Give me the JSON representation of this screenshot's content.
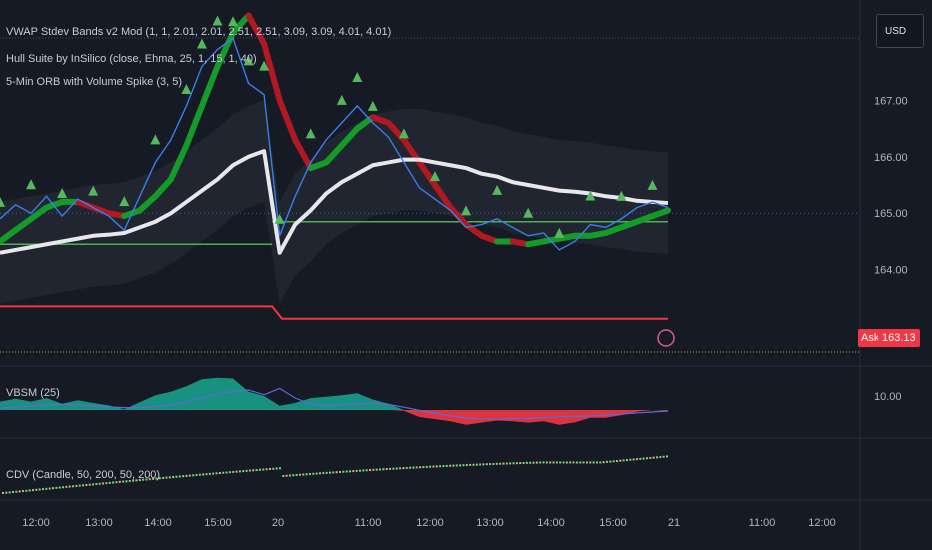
{
  "header": {
    "currency": "USD"
  },
  "indicators": {
    "vwap": "VWAP Stdev Bands v2 Mod (1, 1, 2.01, 2.01, 2.51, 2.51, 3.09, 3.09, 4.01, 4.01)",
    "hull": "Hull Suite by InSilico (close, Ehma, 25, 1, 15, 1, 40)",
    "orb": "5-Min ORB with Volume Spike (3, 5)",
    "vbsm": "VBSM (25)",
    "cdv": "CDV (Candle, 50, 200, 50, 200)"
  },
  "price_axis": {
    "ticks": [
      "167.00",
      "166.00",
      "165.00",
      "164.00"
    ],
    "vbsm_tick": "10.00"
  },
  "ask": {
    "label": "Ask",
    "price": "163.13"
  },
  "time_axis": {
    "ticks": [
      "12:00",
      "13:00",
      "14:00",
      "15:00",
      "20",
      "11:00",
      "12:00",
      "13:00",
      "14:00",
      "15:00",
      "21",
      "11:00",
      "12:00"
    ]
  },
  "colors": {
    "background": "#161a25",
    "price_line": "#3b7de9",
    "vwap": "#e8e8ec",
    "hull_up": "#149b2a",
    "hull_down": "#b01822",
    "orb_high": "#4caf50",
    "orb_low": "#f23645",
    "triangle": "#55b85c",
    "vbsm_pos": "#1a9e8c",
    "vbsm_neg": "#f23645",
    "cdv_up": "#7ed67a",
    "cdv_down": "#f4a38c"
  },
  "chart_data": {
    "type": "line",
    "x": [
      "11:30",
      "11:45",
      "12:00",
      "12:15",
      "12:30",
      "12:45",
      "13:00",
      "13:15",
      "13:30",
      "13:45",
      "14:00",
      "14:15",
      "14:30",
      "14:45",
      "15:00",
      "15:15",
      "15:30",
      "15:45",
      "20 09:30",
      "09:45",
      "10:00",
      "10:15",
      "10:30",
      "10:45",
      "11:00",
      "11:15",
      "11:30",
      "11:45",
      "12:00",
      "12:15",
      "12:30",
      "12:45",
      "13:00",
      "13:15",
      "13:30",
      "13:45",
      "14:00",
      "14:15",
      "14:30",
      "14:45",
      "15:00",
      "15:15",
      "15:30",
      "15:45"
    ],
    "series": [
      {
        "values": [
          164.9,
          165.15,
          165.0,
          165.3,
          164.95,
          165.25,
          165.1,
          164.95,
          164.7,
          165.3,
          165.9,
          166.3,
          166.9,
          167.6,
          167.9,
          168.1,
          167.3,
          167.1,
          164.6,
          165.3,
          165.9,
          166.3,
          166.6,
          166.9,
          166.6,
          166.35,
          165.9,
          165.45,
          165.25,
          165.05,
          164.75,
          164.8,
          164.9,
          164.75,
          164.6,
          164.65,
          164.35,
          164.5,
          164.8,
          164.75,
          164.9,
          165.1,
          165.2,
          165.1
        ]
      },
      {
        "values": [
          164.3,
          164.35,
          164.4,
          164.45,
          164.5,
          164.55,
          164.6,
          164.62,
          164.65,
          164.75,
          164.85,
          165.0,
          165.2,
          165.4,
          165.6,
          165.85,
          166.0,
          166.1,
          164.3,
          164.8,
          165.05,
          165.35,
          165.55,
          165.7,
          165.85,
          165.9,
          165.95,
          165.95,
          165.9,
          165.85,
          165.8,
          165.7,
          165.65,
          165.55,
          165.5,
          165.45,
          165.4,
          165.38,
          165.35,
          165.3,
          165.27,
          165.22,
          165.2,
          165.18
        ]
      },
      {
        "values": [
          164.5,
          164.7,
          164.9,
          165.1,
          165.2,
          165.2,
          165.1,
          165.0,
          164.95,
          165.05,
          165.3,
          165.6,
          166.2,
          166.9,
          167.6,
          168.2,
          168.5,
          168.0,
          167.0,
          166.3,
          165.8,
          165.9,
          166.2,
          166.5,
          166.7,
          166.6,
          166.3,
          165.9,
          165.5,
          165.1,
          164.8,
          164.6,
          164.5,
          164.5,
          164.45,
          164.5,
          164.55,
          164.6,
          164.6,
          164.65,
          164.75,
          164.85,
          164.95,
          165.05
        ]
      }
    ],
    "ylim": [
      162.4,
      168.6
    ],
    "ORB_high": [
      164.45,
      164.85
    ],
    "ORB_low": [
      163.35,
      163.13
    ]
  }
}
